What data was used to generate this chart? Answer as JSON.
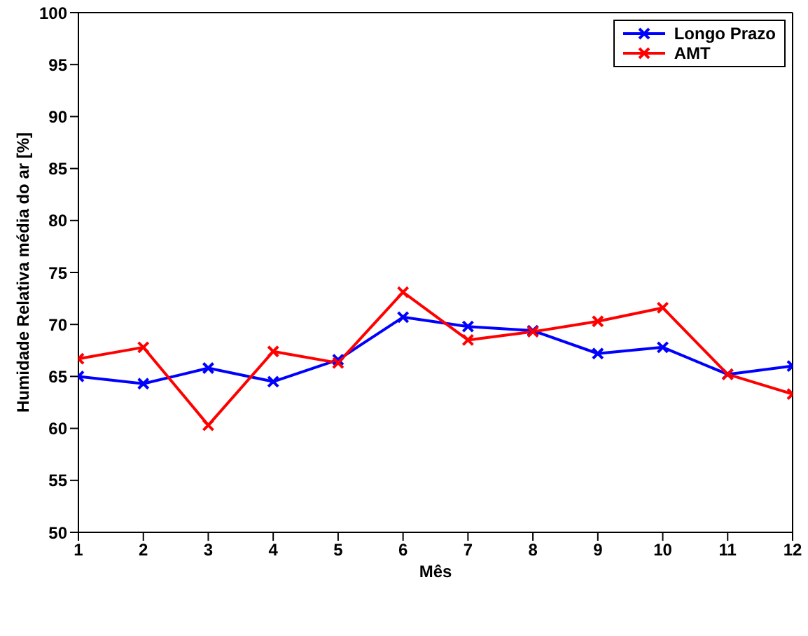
{
  "chart_data": {
    "type": "line",
    "xlabel": "Mês",
    "ylabel": "Humidade Relativa média do ar [%]",
    "x": [
      1,
      2,
      3,
      4,
      5,
      6,
      7,
      8,
      9,
      10,
      11,
      12
    ],
    "series": [
      {
        "name": "Longo Prazo",
        "color": "#0000ff",
        "values": [
          65.0,
          64.3,
          65.8,
          64.5,
          66.6,
          70.7,
          69.8,
          69.4,
          67.2,
          67.8,
          65.2,
          66.0
        ]
      },
      {
        "name": "AMT",
        "color": "#ff0000",
        "values": [
          66.7,
          67.8,
          60.3,
          67.4,
          66.3,
          73.1,
          68.5,
          69.3,
          70.3,
          71.6,
          65.2,
          63.3
        ]
      }
    ],
    "xlim": [
      1,
      12
    ],
    "xticks": [
      1,
      2,
      3,
      4,
      5,
      6,
      7,
      8,
      9,
      10,
      11,
      12
    ],
    "ylim": [
      50,
      100
    ],
    "yticks": [
      50,
      55,
      60,
      65,
      70,
      75,
      80,
      85,
      90,
      95,
      100
    ],
    "grid": false,
    "legend": "top right",
    "marker": "cross",
    "line_style": "solid"
  }
}
